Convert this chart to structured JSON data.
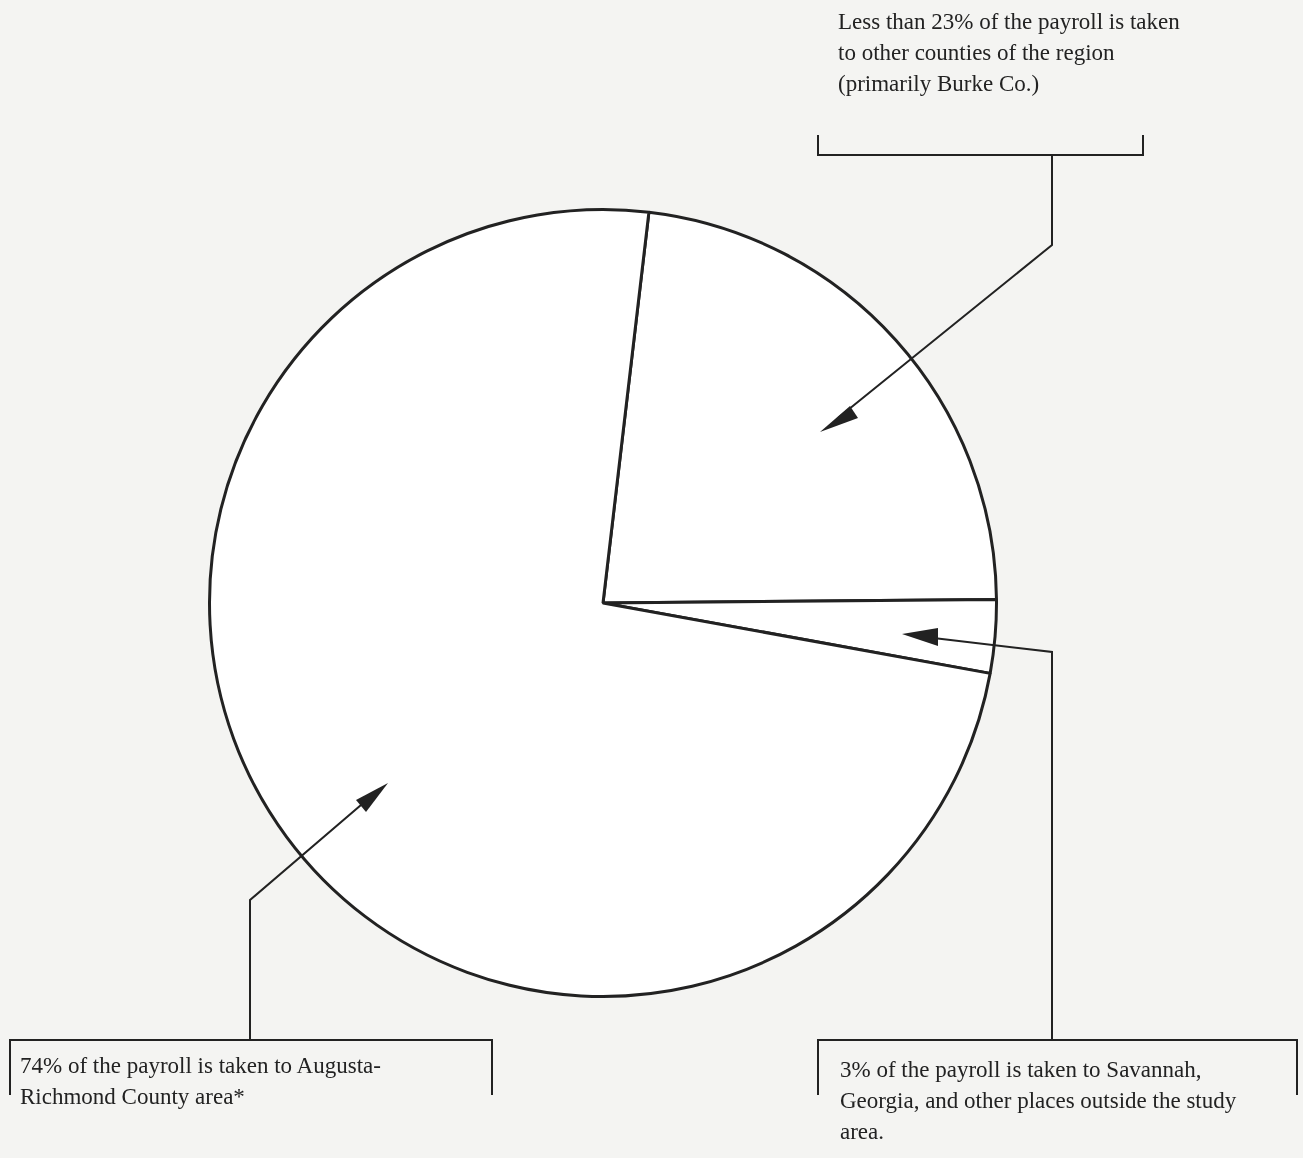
{
  "chart_data": {
    "type": "pie",
    "categories": [
      "Less than 23% of the payroll is taken to other counties of the region (primarily Burke Co.)",
      "3% of the payroll is taken to Savannah, Georgia, and other places outside the study area.",
      "74% of the payroll is taken to Augusta-Richmond County area*"
    ],
    "values": [
      23,
      3,
      74
    ],
    "colors": [
      "#ffffff",
      "#ffffff",
      "#ffffff"
    ],
    "legend": false
  }
}
